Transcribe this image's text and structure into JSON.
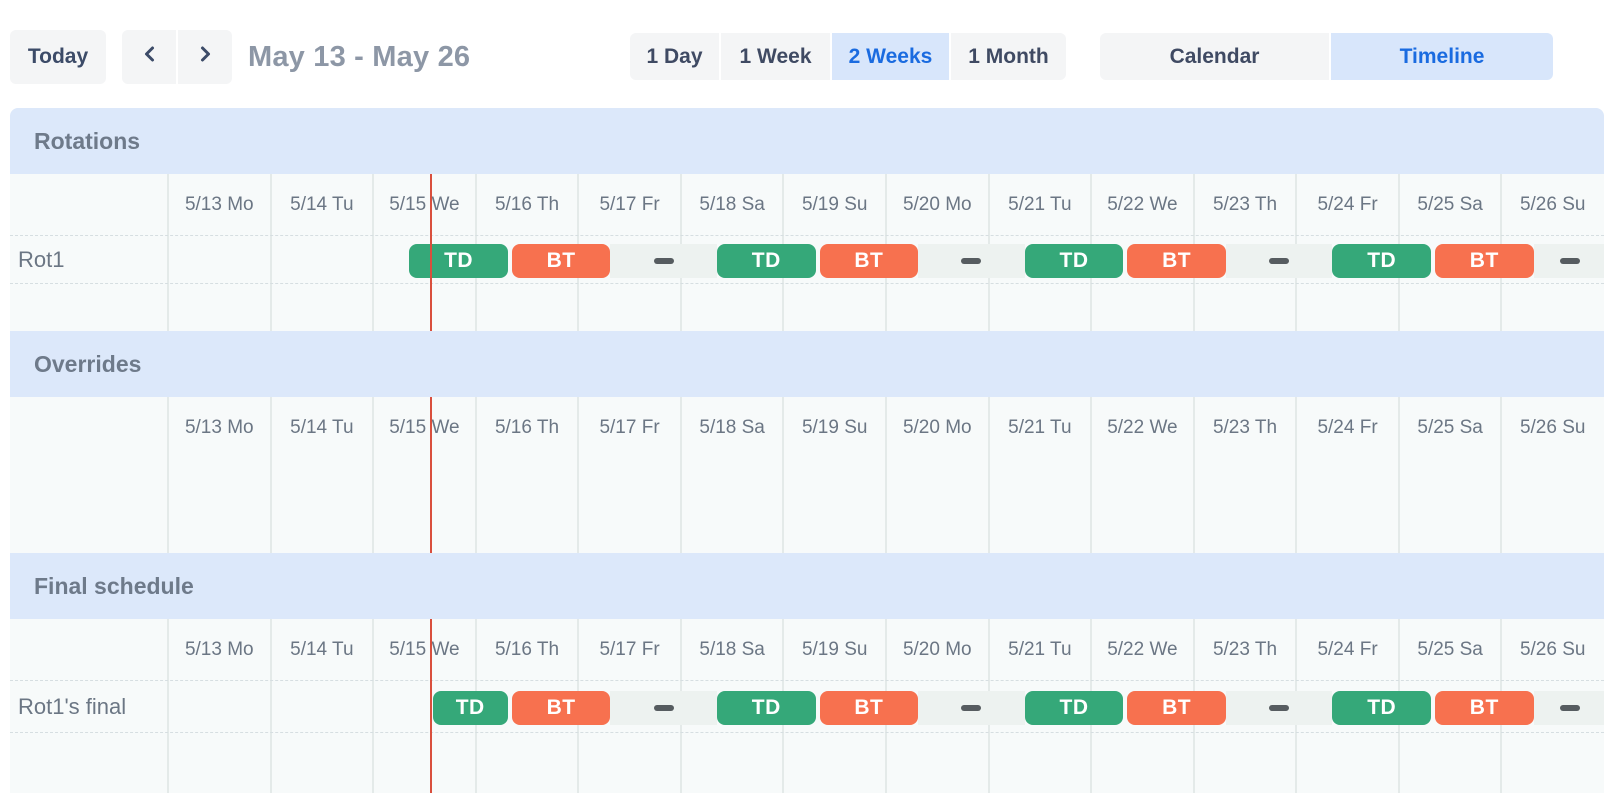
{
  "toolbar": {
    "today_label": "Today",
    "prev_icon": "chevron-left-icon",
    "next_icon": "chevron-right-icon",
    "date_range": "May 13 - May 26",
    "view_options": [
      {
        "label": "1 Day",
        "selected": false
      },
      {
        "label": "1 Week",
        "selected": false
      },
      {
        "label": "2 Weeks",
        "selected": true
      },
      {
        "label": "1 Month",
        "selected": false
      }
    ],
    "mode_options": [
      {
        "label": "Calendar",
        "selected": false
      },
      {
        "label": "Timeline",
        "selected": true
      }
    ]
  },
  "timeline": {
    "days": [
      "5/13 Mo",
      "5/14 Tu",
      "5/15 We",
      "5/16 Th",
      "5/17 Fr",
      "5/18 Sa",
      "5/19 Su",
      "5/20 Mo",
      "5/21 Tu",
      "5/22 We",
      "5/23 Th",
      "5/24 Fr",
      "5/25 Sa",
      "5/26 Su"
    ],
    "now_line_day": 2.56,
    "colors": {
      "green": "#35a879",
      "orange": "#f7714f",
      "gap_strip": "#edf2f0",
      "gap_dash": "#565c60",
      "band_blue": "#dce8fa",
      "now_line_red": "#d94f3d",
      "selected_blue_bg": "#d8e6fb",
      "selected_blue_text": "#1a6be0"
    },
    "sections": [
      {
        "id": "rotations",
        "title": "Rotations",
        "rows": [
          {
            "label": "Rot1",
            "bars": [
              {
                "type": "shift",
                "label": "TD",
                "color": "green",
                "start": 2.333,
                "end": 3.333
              },
              {
                "type": "shift",
                "label": "BT",
                "color": "orange",
                "start": 3.333,
                "end": 4.333
              },
              {
                "type": "gap",
                "start": 4.333,
                "end": 5.333
              },
              {
                "type": "shift",
                "label": "TD",
                "color": "green",
                "start": 5.333,
                "end": 6.333
              },
              {
                "type": "shift",
                "label": "BT",
                "color": "orange",
                "start": 6.333,
                "end": 7.333
              },
              {
                "type": "gap",
                "start": 7.333,
                "end": 8.333
              },
              {
                "type": "shift",
                "label": "TD",
                "color": "green",
                "start": 8.333,
                "end": 9.333
              },
              {
                "type": "shift",
                "label": "BT",
                "color": "orange",
                "start": 9.333,
                "end": 10.333
              },
              {
                "type": "gap",
                "start": 10.333,
                "end": 11.333
              },
              {
                "type": "shift",
                "label": "TD",
                "color": "green",
                "start": 11.333,
                "end": 12.333
              },
              {
                "type": "shift",
                "label": "BT",
                "color": "orange",
                "start": 12.333,
                "end": 13.333
              },
              {
                "type": "gap",
                "start": 13.333,
                "end": 14
              }
            ]
          }
        ]
      },
      {
        "id": "overrides",
        "title": "Overrides",
        "rows": []
      },
      {
        "id": "final",
        "title": "Final schedule",
        "rows": [
          {
            "label": "Rot1's final",
            "bars": [
              {
                "type": "shift",
                "label": "TD",
                "color": "green",
                "start": 2.56,
                "end": 3.333
              },
              {
                "type": "shift",
                "label": "BT",
                "color": "orange",
                "start": 3.333,
                "end": 4.333
              },
              {
                "type": "gap",
                "start": 4.333,
                "end": 5.333
              },
              {
                "type": "shift",
                "label": "TD",
                "color": "green",
                "start": 5.333,
                "end": 6.333
              },
              {
                "type": "shift",
                "label": "BT",
                "color": "orange",
                "start": 6.333,
                "end": 7.333
              },
              {
                "type": "gap",
                "start": 7.333,
                "end": 8.333
              },
              {
                "type": "shift",
                "label": "TD",
                "color": "green",
                "start": 8.333,
                "end": 9.333
              },
              {
                "type": "shift",
                "label": "BT",
                "color": "orange",
                "start": 9.333,
                "end": 10.333
              },
              {
                "type": "gap",
                "start": 10.333,
                "end": 11.333
              },
              {
                "type": "shift",
                "label": "TD",
                "color": "green",
                "start": 11.333,
                "end": 12.333
              },
              {
                "type": "shift",
                "label": "BT",
                "color": "orange",
                "start": 12.333,
                "end": 13.333
              },
              {
                "type": "gap",
                "start": 13.333,
                "end": 14
              }
            ]
          }
        ]
      }
    ]
  }
}
